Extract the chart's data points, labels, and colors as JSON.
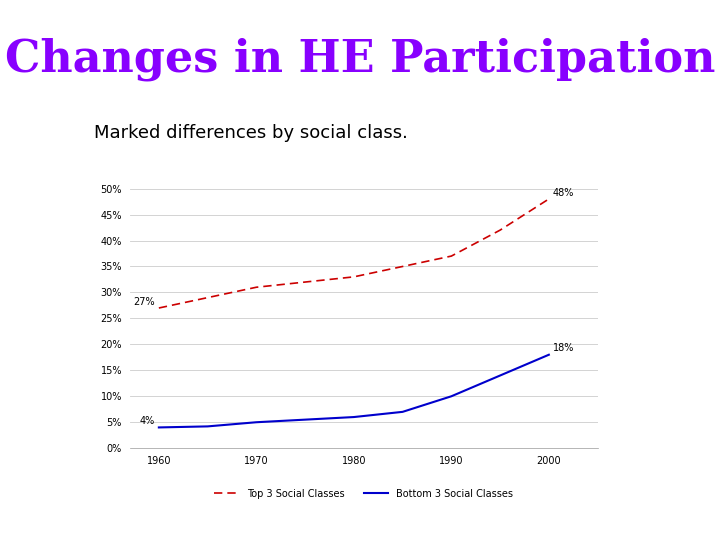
{
  "title": "Changes in HE Participation",
  "subtitle": "Marked differences by social class.",
  "title_color": "#8800ff",
  "subtitle_color": "#000000",
  "title_fontsize": 32,
  "subtitle_fontsize": 13,
  "years": [
    1960,
    1965,
    1970,
    1975,
    1980,
    1985,
    1990,
    1995,
    2000
  ],
  "top3": [
    27,
    29,
    31,
    32,
    33,
    35,
    37,
    42,
    48
  ],
  "bottom3": [
    4,
    4.2,
    5,
    5.5,
    6,
    7,
    10,
    14,
    18
  ],
  "top3_color": "#cc0000",
  "bottom3_color": "#0000cc",
  "top3_label": "Top 3 Social Classes",
  "bottom3_label": "Bottom 3 Social Classes",
  "top3_start_label": "27%",
  "top3_end_label": "48%",
  "bottom3_start_label": "4%",
  "bottom3_end_label": "18%",
  "ylim": [
    0,
    52
  ],
  "yticks": [
    0,
    5,
    10,
    15,
    20,
    25,
    30,
    35,
    40,
    45,
    50
  ],
  "background_color": "#ffffff",
  "grid_color": "#cccccc",
  "annotation_fontsize": 7,
  "tick_fontsize": 7,
  "legend_fontsize": 7
}
